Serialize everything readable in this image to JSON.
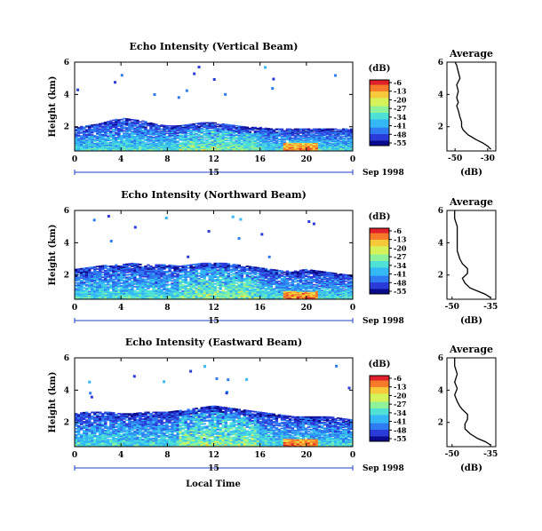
{
  "figure": {
    "xlabel": "Local Time",
    "colorbar_unit": "(dB)",
    "colorbar_ticks": [
      "-6",
      "-13",
      "-20",
      "-27",
      "-34",
      "-41",
      "-48",
      "-55"
    ],
    "colorscale": [
      "#0a0a8c",
      "#2a3bd8",
      "#2f7bf2",
      "#35b8f5",
      "#4fe0d6",
      "#8ef29a",
      "#d6f25a",
      "#f7c83a",
      "#f77a2a",
      "#e0202a"
    ],
    "background": "#ffffff"
  },
  "chart_data": [
    {
      "type": "heatmap",
      "title": "Echo Intensity (Vertical Beam)",
      "ylabel": "Height (km)",
      "xticks": [
        "0",
        "4",
        "8",
        "12",
        "16",
        "20",
        "0"
      ],
      "xlim": [
        0,
        24
      ],
      "yticks": [
        "2",
        "4",
        "6"
      ],
      "ylim": [
        0.5,
        6
      ],
      "date_label": "15",
      "month_year": "Sep 1998",
      "echo_top_km": [
        1.9,
        2.0,
        2.1,
        2.3,
        2.5,
        2.4,
        2.3,
        2.1,
        2.0,
        2.0,
        2.1,
        2.2,
        2.2,
        2.1,
        2.0,
        1.9,
        1.9,
        1.8,
        1.8,
        1.8,
        1.8,
        1.8,
        1.8,
        1.8,
        1.8
      ],
      "profile": {
        "title": "Average",
        "xlabel": "(dB)",
        "xticks": [
          "-50",
          "-30"
        ],
        "xlim": [
          -55,
          -25
        ],
        "yticks": [
          "2",
          "4",
          "6"
        ],
        "ylim": [
          0.5,
          6
        ],
        "height_km": [
          0.6,
          0.8,
          1.0,
          1.2,
          1.5,
          1.8,
          2.0,
          2.3,
          2.6,
          3.0,
          3.3,
          3.5,
          3.8,
          4.2,
          4.6,
          5.0,
          5.4,
          5.8,
          6.0
        ],
        "db": [
          -28,
          -30,
          -33,
          -37,
          -42,
          -45,
          -46,
          -46,
          -47,
          -48,
          -49,
          -48,
          -49,
          -48,
          -49,
          -47,
          -48,
          -49,
          -50
        ]
      }
    },
    {
      "type": "heatmap",
      "title": "Echo Intensity (Northward Beam)",
      "ylabel": "Height (km)",
      "xticks": [
        "0",
        "4",
        "8",
        "12",
        "16",
        "20",
        "0"
      ],
      "xlim": [
        0,
        24
      ],
      "yticks": [
        "2",
        "4",
        "6"
      ],
      "ylim": [
        0.5,
        6
      ],
      "date_label": "15",
      "month_year": "Sep 1998",
      "echo_top_km": [
        2.3,
        2.4,
        2.5,
        2.6,
        2.6,
        2.7,
        2.6,
        2.6,
        2.6,
        2.5,
        2.6,
        2.7,
        2.7,
        2.7,
        2.6,
        2.5,
        2.4,
        2.3,
        2.2,
        2.2,
        2.3,
        2.2,
        2.1,
        2.0,
        1.9
      ],
      "profile": {
        "title": "Average",
        "xlabel": "(dB)",
        "xticks": [
          "-50",
          "-35"
        ],
        "xlim": [
          -52,
          -33
        ],
        "yticks": [
          "2",
          "4",
          "6"
        ],
        "ylim": [
          0.5,
          6
        ],
        "height_km": [
          0.6,
          0.8,
          1.0,
          1.2,
          1.5,
          1.8,
          2.1,
          2.4,
          2.7,
          3.0,
          3.5,
          4.0,
          4.5,
          5.0,
          5.5,
          6.0
        ],
        "db": [
          -35,
          -37,
          -40,
          -43,
          -45,
          -46,
          -44,
          -44,
          -46,
          -47,
          -48,
          -48,
          -48,
          -48,
          -49,
          -49
        ]
      }
    },
    {
      "type": "heatmap",
      "title": "Echo Intensity (Eastward Beam)",
      "ylabel": "Height (km)",
      "xticks": [
        "0",
        "4",
        "8",
        "12",
        "16",
        "20",
        "0"
      ],
      "xlim": [
        0,
        24
      ],
      "yticks": [
        "2",
        "4",
        "6"
      ],
      "ylim": [
        0.5,
        6
      ],
      "date_label": "15",
      "month_year": "Sep 1998",
      "echo_top_km": [
        2.5,
        2.6,
        2.6,
        2.6,
        2.5,
        2.5,
        2.6,
        2.6,
        2.6,
        2.7,
        2.8,
        2.9,
        3.0,
        2.9,
        2.8,
        2.7,
        2.6,
        2.5,
        2.4,
        2.3,
        2.3,
        2.3,
        2.3,
        2.2,
        2.1
      ],
      "profile": {
        "title": "Average",
        "xlabel": "(dB)",
        "xticks": [
          "-50",
          "-35"
        ],
        "xlim": [
          -52,
          -33
        ],
        "yticks": [
          "2",
          "4",
          "6"
        ],
        "ylim": [
          0.5,
          6
        ],
        "height_km": [
          0.6,
          0.8,
          1.0,
          1.3,
          1.6,
          1.9,
          2.2,
          2.5,
          2.8,
          3.0,
          3.3,
          3.7,
          4.1,
          4.5,
          5.0,
          5.5,
          6.0
        ],
        "db": [
          -35,
          -37,
          -40,
          -43,
          -45,
          -45,
          -44,
          -44,
          -46,
          -47,
          -48,
          -49,
          -48,
          -49,
          -48,
          -49,
          -49
        ]
      }
    }
  ]
}
